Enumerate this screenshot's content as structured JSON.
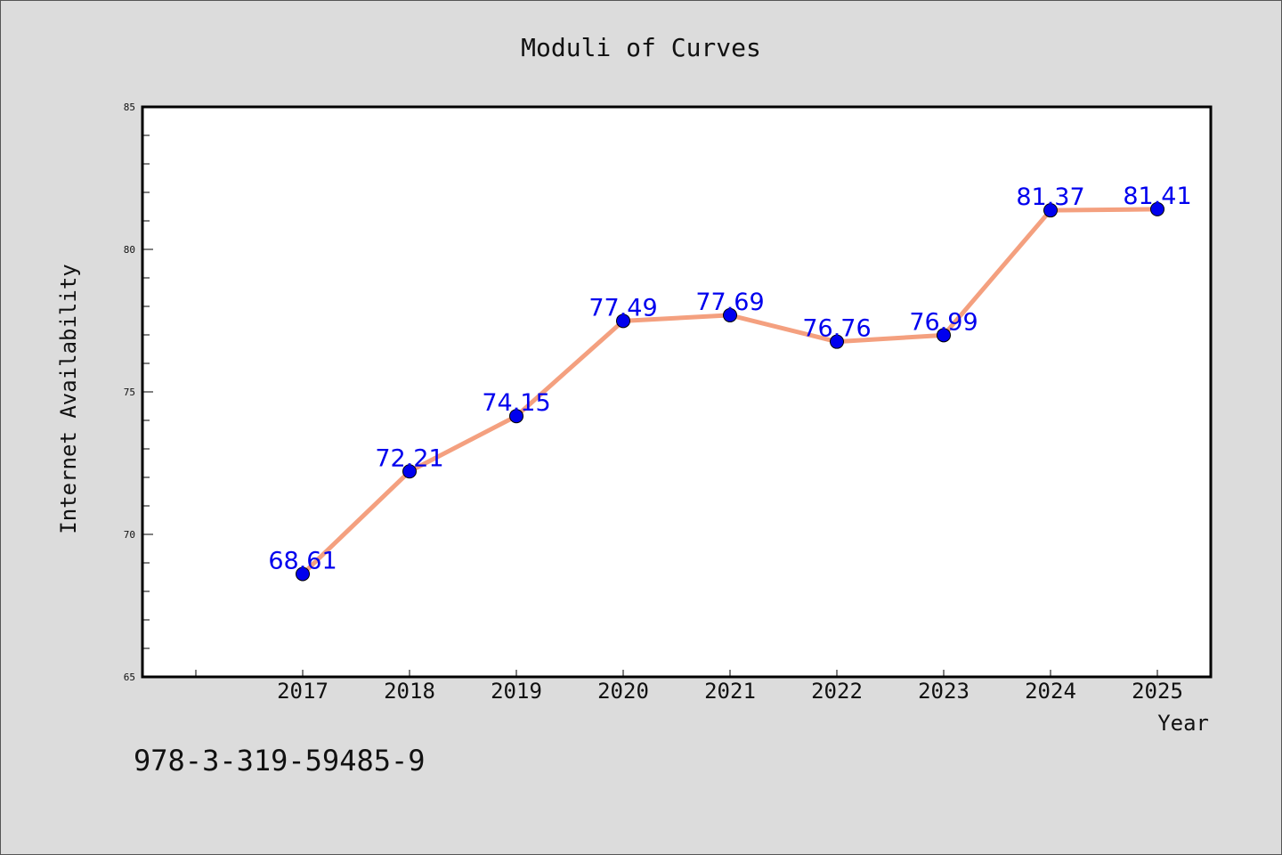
{
  "chart_data": {
    "type": "line",
    "title": "Moduli of Curves",
    "xlabel": "Year",
    "ylabel": "Internet Availability",
    "x": [
      "2017",
      "2018",
      "2019",
      "2020",
      "2021",
      "2022",
      "2023",
      "2024",
      "2025"
    ],
    "series": [
      {
        "values": [
          68.61,
          72.21,
          74.15,
          77.49,
          77.69,
          76.76,
          76.99,
          81.37,
          81.41
        ],
        "line_color": "#f4a07f",
        "marker_color": "#0000ee",
        "label_color": "#0000ee"
      }
    ],
    "data_labels": [
      "68.61",
      "72.21",
      "74.15",
      "77.49",
      "77.69",
      "76.76",
      "76.99",
      "81.37",
      "81.41"
    ],
    "ylim": [
      65,
      85
    ],
    "yticks": [
      "65",
      "70",
      "75",
      "80",
      "85"
    ],
    "grid": false,
    "legend": "none"
  },
  "footnote": "978-3-319-59485-9"
}
